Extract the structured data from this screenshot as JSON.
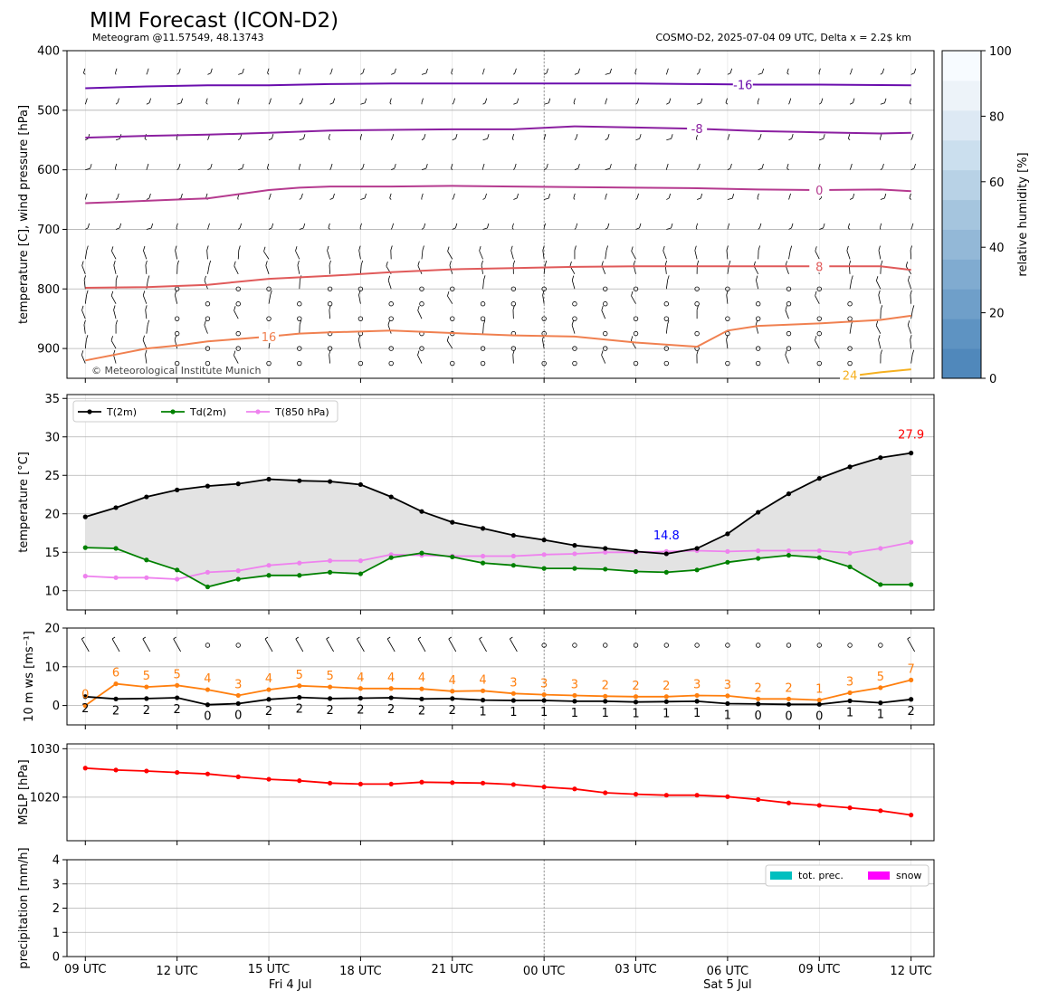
{
  "header": {
    "title": "MIM Forecast (ICON-D2)",
    "left_subtitle": "Meteogram @11.57549, 48.13743",
    "right_subtitle": "COSMO-D2, 2025-07-04 09 UTC, Delta x = 2.2$ km",
    "copyright": "© Meteorological Institute Munich"
  },
  "x_axis": {
    "hours": [
      0,
      3,
      6,
      9,
      12,
      15,
      18,
      21,
      24,
      27
    ],
    "tick_labels": [
      "09 UTC",
      "12 UTC",
      "15 UTC",
      "18 UTC",
      "21 UTC",
      "00 UTC",
      "03 UTC",
      "06 UTC",
      "09 UTC",
      "12 UTC"
    ],
    "day_labels": [
      {
        "hour": 6.7,
        "text": "Fri 4 Jul"
      },
      {
        "hour": 21.0,
        "text": "Sat 5 Jul"
      }
    ],
    "range": [
      -0.6,
      27.75
    ]
  },
  "chart_data": [
    {
      "type": "contour",
      "name": "upper-air",
      "ylabel": "temperature [C], wind pressure [hPa]",
      "ylim": [
        950,
        400
      ],
      "yticks": [
        400,
        500,
        600,
        700,
        800,
        900
      ],
      "colorbar": {
        "label": "relative humidity [%]",
        "ticks": [
          0,
          20,
          40,
          60,
          80,
          100
        ],
        "range": [
          0,
          100
        ]
      },
      "wind_levels": [
        440,
        490,
        550,
        600,
        650,
        700,
        750,
        775,
        800,
        825,
        850,
        875,
        900,
        925
      ],
      "isotherms": [
        {
          "label": "-16",
          "color": "#6a0dad",
          "label_at": 21.5,
          "points": [
            [
              0,
              463
            ],
            [
              2,
              460
            ],
            [
              4,
              458
            ],
            [
              6,
              458
            ],
            [
              8,
              456
            ],
            [
              10,
              455
            ],
            [
              12,
              455
            ],
            [
              14,
              455
            ],
            [
              16,
              455
            ],
            [
              18,
              455
            ],
            [
              20,
              456
            ],
            [
              22,
              457
            ],
            [
              24,
              457
            ],
            [
              27,
              458
            ]
          ]
        },
        {
          "label": "-8",
          "color": "#8b1fa0",
          "label_at": 20.0,
          "points": [
            [
              0,
              546
            ],
            [
              2,
              543
            ],
            [
              4,
              541
            ],
            [
              6,
              538
            ],
            [
              8,
              534
            ],
            [
              10,
              533
            ],
            [
              12,
              532
            ],
            [
              14,
              532
            ],
            [
              16,
              527
            ],
            [
              18,
              529
            ],
            [
              20,
              531
            ],
            [
              22,
              535
            ],
            [
              24,
              537
            ],
            [
              26,
              539
            ],
            [
              27,
              538
            ]
          ]
        },
        {
          "label": "0",
          "color": "#b53a8f",
          "label_at": 24.0,
          "points": [
            [
              0,
              656
            ],
            [
              1,
              654
            ],
            [
              2,
              652
            ],
            [
              3,
              650
            ],
            [
              4,
              648
            ],
            [
              5,
              641
            ],
            [
              6,
              634
            ],
            [
              7,
              630
            ],
            [
              8,
              628
            ],
            [
              10,
              628
            ],
            [
              12,
              627
            ],
            [
              14,
              628
            ],
            [
              16,
              629
            ],
            [
              18,
              630
            ],
            [
              20,
              631
            ],
            [
              22,
              633
            ],
            [
              24,
              634
            ],
            [
              26,
              633
            ],
            [
              27,
              636
            ]
          ]
        },
        {
          "label": "8",
          "color": "#e05a5a",
          "label_at": 24.0,
          "points": [
            [
              0,
              798
            ],
            [
              2,
              797
            ],
            [
              4,
              793
            ],
            [
              6,
              783
            ],
            [
              8,
              778
            ],
            [
              10,
              772
            ],
            [
              12,
              767
            ],
            [
              14,
              765
            ],
            [
              16,
              763
            ],
            [
              18,
              762
            ],
            [
              20,
              762
            ],
            [
              22,
              762
            ],
            [
              24,
              762
            ],
            [
              26,
              762
            ],
            [
              27,
              768
            ]
          ]
        },
        {
          "label": "16",
          "color": "#f08050",
          "label_at": 6.0,
          "points": [
            [
              0,
              920
            ],
            [
              1,
              910
            ],
            [
              2,
              900
            ],
            [
              3,
              895
            ],
            [
              4,
              888
            ],
            [
              5,
              884
            ],
            [
              6,
              880
            ],
            [
              7,
              875
            ],
            [
              8,
              873
            ],
            [
              10,
              870
            ],
            [
              12,
              874
            ],
            [
              14,
              878
            ],
            [
              16,
              880
            ],
            [
              18,
              890
            ],
            [
              20,
              897
            ],
            [
              21,
              870
            ],
            [
              22,
              862
            ],
            [
              24,
              858
            ],
            [
              26,
              852
            ],
            [
              27,
              845
            ]
          ]
        },
        {
          "label": "24",
          "color": "#f5b020",
          "label_at": 25.0,
          "points": [
            [
              25.2,
              945
            ],
            [
              26,
              940
            ],
            [
              27,
              935
            ]
          ]
        }
      ]
    },
    {
      "type": "line",
      "name": "temperature",
      "ylabel": "temperature [$^\\circ$C]",
      "ylim": [
        7.5,
        35.5
      ],
      "yticks": [
        10,
        15,
        20,
        25,
        30,
        35
      ],
      "legend_position": "top-left",
      "annotations": [
        {
          "text": "14.8",
          "x": 19,
          "y": 14.8,
          "color": "#0000ff"
        },
        {
          "text": "27.9",
          "x": 27,
          "y": 27.9,
          "color": "#ff0000"
        }
      ],
      "series": [
        {
          "name": "T(2m)",
          "color": "#000000",
          "values": [
            19.6,
            20.8,
            22.2,
            23.1,
            23.6,
            23.9,
            24.5,
            24.3,
            24.2,
            23.8,
            22.2,
            20.3,
            18.9,
            18.1,
            17.2,
            16.6,
            15.9,
            15.5,
            15.1,
            14.8,
            15.5,
            17.4,
            20.2,
            22.6,
            24.6,
            26.1,
            27.3,
            27.9
          ]
        },
        {
          "name": "Td(2m)",
          "color": "#008000",
          "values": [
            15.6,
            15.5,
            14.0,
            12.7,
            10.5,
            11.5,
            12.0,
            12.0,
            12.4,
            12.2,
            14.3,
            14.9,
            14.4,
            13.6,
            13.3,
            12.9,
            12.9,
            12.8,
            12.5,
            12.4,
            12.7,
            13.7,
            14.2,
            14.6,
            14.3,
            13.1,
            10.8,
            10.8
          ]
        },
        {
          "name": "T(850 hPa)",
          "color": "#ee82ee",
          "values": [
            11.9,
            11.7,
            11.7,
            11.5,
            12.4,
            12.6,
            13.3,
            13.6,
            13.9,
            13.9,
            14.7,
            14.6,
            14.5,
            14.5,
            14.5,
            14.7,
            14.8,
            15.0,
            15.0,
            15.1,
            15.2,
            15.1,
            15.2,
            15.2,
            15.2,
            14.9,
            15.5,
            16.3
          ]
        }
      ]
    },
    {
      "type": "line",
      "name": "wind-10m",
      "ylabel": "10 m ws [ms$^{-1}$]",
      "ylim": [
        -5,
        20
      ],
      "yticks": [
        0,
        10,
        20
      ],
      "series": [
        {
          "name": "gust",
          "color": "#ff7f0e",
          "values": [
            0,
            5.6,
            4.8,
            5.2,
            4.1,
            2.6,
            4.1,
            5.1,
            4.8,
            4.4,
            4.4,
            4.3,
            3.7,
            3.8,
            3.1,
            2.8,
            2.6,
            2.4,
            2.3,
            2.3,
            2.6,
            2.5,
            1.7,
            1.7,
            1.4,
            3.3,
            4.6,
            6.6
          ]
        },
        {
          "name": "mean",
          "color": "#000000",
          "values": [
            2.3,
            1.7,
            1.8,
            2.0,
            0.2,
            0.5,
            1.6,
            2.1,
            1.8,
            1.9,
            2.0,
            1.7,
            1.8,
            1.4,
            1.3,
            1.3,
            1.1,
            1.1,
            0.9,
            1.0,
            1.1,
            0.5,
            0.4,
            0.3,
            0.3,
            1.2,
            0.7,
            1.6
          ]
        }
      ],
      "gust_labels": [
        "0",
        "6",
        "5",
        "5",
        "4",
        "3",
        "4",
        "5",
        "5",
        "4",
        "4",
        "4",
        "4",
        "4",
        "3",
        "3",
        "3",
        "2",
        "2",
        "2",
        "3",
        "3",
        "2",
        "2",
        "1",
        "3",
        "5",
        "7"
      ],
      "mean_labels": [
        "2",
        "2",
        "2",
        "2",
        "0",
        "0",
        "2",
        "2",
        "2",
        "2",
        "2",
        "2",
        "2",
        "1",
        "1",
        "1",
        "1",
        "1",
        "1",
        "1",
        "1",
        "1",
        "0",
        "0",
        "0",
        "1",
        "1",
        "2"
      ]
    },
    {
      "type": "line",
      "name": "mslp",
      "ylabel": "MSLP [hPa]",
      "ylim": [
        1011,
        1031
      ],
      "yticks": [
        1020,
        1030
      ],
      "series": [
        {
          "name": "MSLP",
          "color": "#ff0000",
          "values": [
            1026.0,
            1025.6,
            1025.4,
            1025.1,
            1024.8,
            1024.2,
            1023.7,
            1023.4,
            1022.9,
            1022.7,
            1022.7,
            1023.1,
            1023.0,
            1022.9,
            1022.6,
            1022.1,
            1021.7,
            1020.9,
            1020.6,
            1020.4,
            1020.4,
            1020.1,
            1019.5,
            1018.8,
            1018.3,
            1017.8,
            1017.2,
            1016.3
          ]
        }
      ]
    },
    {
      "type": "bar",
      "name": "precipitation",
      "ylabel": "precipitation [mm/h]",
      "ylim": [
        0,
        4
      ],
      "yticks": [
        0,
        1,
        2,
        3,
        4
      ],
      "legend_position": "top-right",
      "series": [
        {
          "name": "tot. prec.",
          "color": "#00bfbf",
          "values": [
            0,
            0,
            0,
            0,
            0,
            0,
            0,
            0,
            0,
            0,
            0,
            0,
            0,
            0,
            0,
            0,
            0,
            0,
            0,
            0,
            0,
            0,
            0,
            0,
            0,
            0,
            0,
            0
          ]
        },
        {
          "name": "snow",
          "color": "#ff00ff",
          "values": [
            0,
            0,
            0,
            0,
            0,
            0,
            0,
            0,
            0,
            0,
            0,
            0,
            0,
            0,
            0,
            0,
            0,
            0,
            0,
            0,
            0,
            0,
            0,
            0,
            0,
            0,
            0,
            0
          ]
        }
      ]
    }
  ]
}
